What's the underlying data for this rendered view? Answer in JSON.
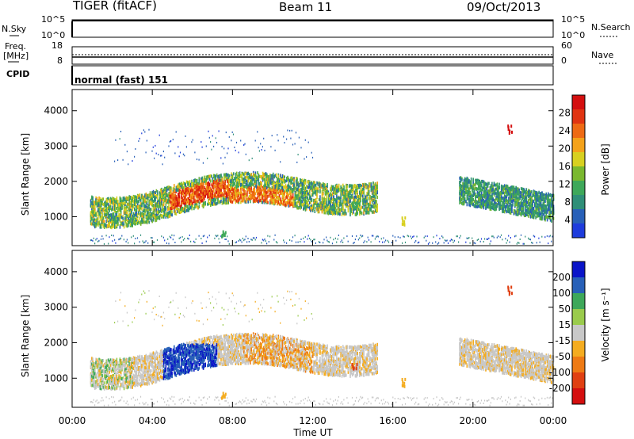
{
  "header": {
    "radar": "TIGER (fitACF)",
    "beam": "Beam 11",
    "date": "09/Oct/2013"
  },
  "noise_panel": {
    "left_label": "N.Sky",
    "right_label": "N.Search",
    "left_ticks": [
      "10^5",
      "10^0"
    ],
    "right_ticks": [
      "10^5",
      "10^0"
    ]
  },
  "freq_panel": {
    "left_label_1": "Freq.",
    "left_label_2": "[MHz]",
    "right_label": "Nave",
    "left_ticks": [
      "18",
      "8"
    ],
    "right_ticks": [
      "60",
      "0"
    ]
  },
  "cpid_panel": {
    "label": "CPID",
    "mode": "normal (fast) 151"
  },
  "chart_data": [
    {
      "type": "heatmap",
      "title": "",
      "xlabel": "",
      "ylabel": "Slant Range [km]",
      "y_ticks": [
        1000,
        2000,
        3000,
        4000
      ],
      "ylim": [
        180,
        4600
      ],
      "xlim_hours": [
        0,
        24
      ],
      "colorbar": {
        "label": "Power [dB]",
        "ticks": [
          4,
          8,
          12,
          16,
          20,
          24,
          28
        ],
        "colors": [
          "#1e3cdc",
          "#2860b8",
          "#2f8f78",
          "#3ea85a",
          "#7ab82f",
          "#d8d020",
          "#f4a21a",
          "#ee6a14",
          "#e03412",
          "#d40f0f"
        ]
      },
      "features": [
        {
          "name": "main scatter band",
          "hours": [
            1.0,
            15.0
          ],
          "range_km": [
            900,
            2300
          ],
          "power_db": 22
        },
        {
          "name": "strong echo 05-07 UT",
          "hours": [
            5.0,
            7.5
          ],
          "range_km": [
            1000,
            2200
          ],
          "power_db": 28
        },
        {
          "name": "near range echoes",
          "hours": [
            6.5,
            10.0
          ],
          "range_km": [
            400,
            700
          ],
          "power_db": 12
        },
        {
          "name": "evening band",
          "hours": [
            19.5,
            24.0
          ],
          "range_km": [
            900,
            2200
          ],
          "power_db": 12
        },
        {
          "name": "patch 14 UT",
          "hours": [
            13.9,
            14.2
          ],
          "range_km": [
            1200,
            1600
          ],
          "power_db": 12
        },
        {
          "name": "patch 16.5 UT",
          "hours": [
            16.3,
            16.8
          ],
          "range_km": [
            850,
            1000
          ],
          "power_db": 16
        }
      ]
    },
    {
      "type": "heatmap",
      "title": "",
      "xlabel": "Time UT",
      "ylabel": "Slant Range [km]",
      "x_ticks": [
        "00:00",
        "04:00",
        "08:00",
        "12:00",
        "16:00",
        "20:00",
        "00:00"
      ],
      "y_ticks": [
        1000,
        2000,
        3000,
        4000
      ],
      "ylim": [
        180,
        4600
      ],
      "xlim_hours": [
        0,
        24
      ],
      "colorbar": {
        "label": "Velocity [m s⁻¹]",
        "ticks": [
          200,
          100,
          50,
          15,
          -15,
          -50,
          -100,
          -200
        ],
        "colors": [
          "#0a14c8",
          "#2860b8",
          "#3ea85a",
          "#9acb4c",
          "#c8c8c8",
          "#f4ac20",
          "#ee7a14",
          "#e04012",
          "#d40f0f"
        ]
      },
      "features": [
        {
          "name": "main band (low velocity)",
          "hours": [
            1.0,
            15.0
          ],
          "range_km": [
            900,
            2300
          ],
          "velocity": -10
        },
        {
          "name": "strong positive velocity",
          "hours": [
            4.5,
            7.0
          ],
          "range_km": [
            800,
            2000
          ],
          "velocity": 200
        },
        {
          "name": "negative velocity patches",
          "hours": [
            8.5,
            12.0
          ],
          "range_km": [
            1300,
            2100
          ],
          "velocity": -60
        },
        {
          "name": "evening band",
          "hours": [
            19.5,
            24.0
          ],
          "range_km": [
            900,
            2200
          ],
          "velocity": -10
        },
        {
          "name": "patch 14 UT",
          "hours": [
            13.9,
            14.2
          ],
          "range_km": [
            1200,
            1600
          ],
          "velocity": -200
        }
      ]
    }
  ]
}
